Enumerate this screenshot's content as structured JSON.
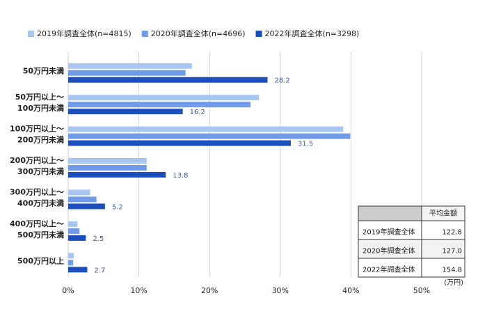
{
  "chart_data": {
    "type": "hbar",
    "categories": [
      [
        "50万円未満"
      ],
      [
        "50万円以上～",
        "100万円未満"
      ],
      [
        "100万円以上～",
        "200万円未満"
      ],
      [
        "200万円以上～",
        "300万円未満"
      ],
      [
        "300万円以上～",
        "400万円未満"
      ],
      [
        "400万円以上～",
        "500万円未満"
      ],
      [
        "500万円以上"
      ]
    ],
    "series": [
      {
        "name": "2019年調査全体(n=4815)",
        "color": "#a9c5f2",
        "values": [
          17.5,
          27.0,
          38.9,
          11.1,
          3.1,
          1.3,
          0.8
        ],
        "data_labels": false
      },
      {
        "name": "2020年調査全体(n=4696)",
        "color": "#6f9be8",
        "values": [
          16.6,
          25.8,
          39.9,
          11.1,
          4.0,
          1.6,
          0.7
        ],
        "data_labels": false
      },
      {
        "name": "2022年調査全体(n=3298)",
        "color": "#1b4fbd",
        "values": [
          28.2,
          16.2,
          31.5,
          13.8,
          5.2,
          2.5,
          2.7
        ],
        "data_labels": true
      }
    ],
    "xlim": [
      0,
      55
    ],
    "xticks": [
      {
        "value": 0,
        "label": "0%"
      },
      {
        "value": 10,
        "label": "10%"
      },
      {
        "value": 20,
        "label": "20%"
      },
      {
        "value": 30,
        "label": "30%"
      },
      {
        "value": 40,
        "label": "40%"
      },
      {
        "value": 50,
        "label": "50%"
      }
    ],
    "grid": true,
    "legend": "top",
    "table": {
      "header": "平均金額",
      "rows": [
        [
          "2019年調査全体",
          "122.8"
        ],
        [
          "2020年調査全体",
          "127.0"
        ],
        [
          "2022年調査全体",
          "154.8"
        ]
      ],
      "unit": "(万円)"
    }
  }
}
